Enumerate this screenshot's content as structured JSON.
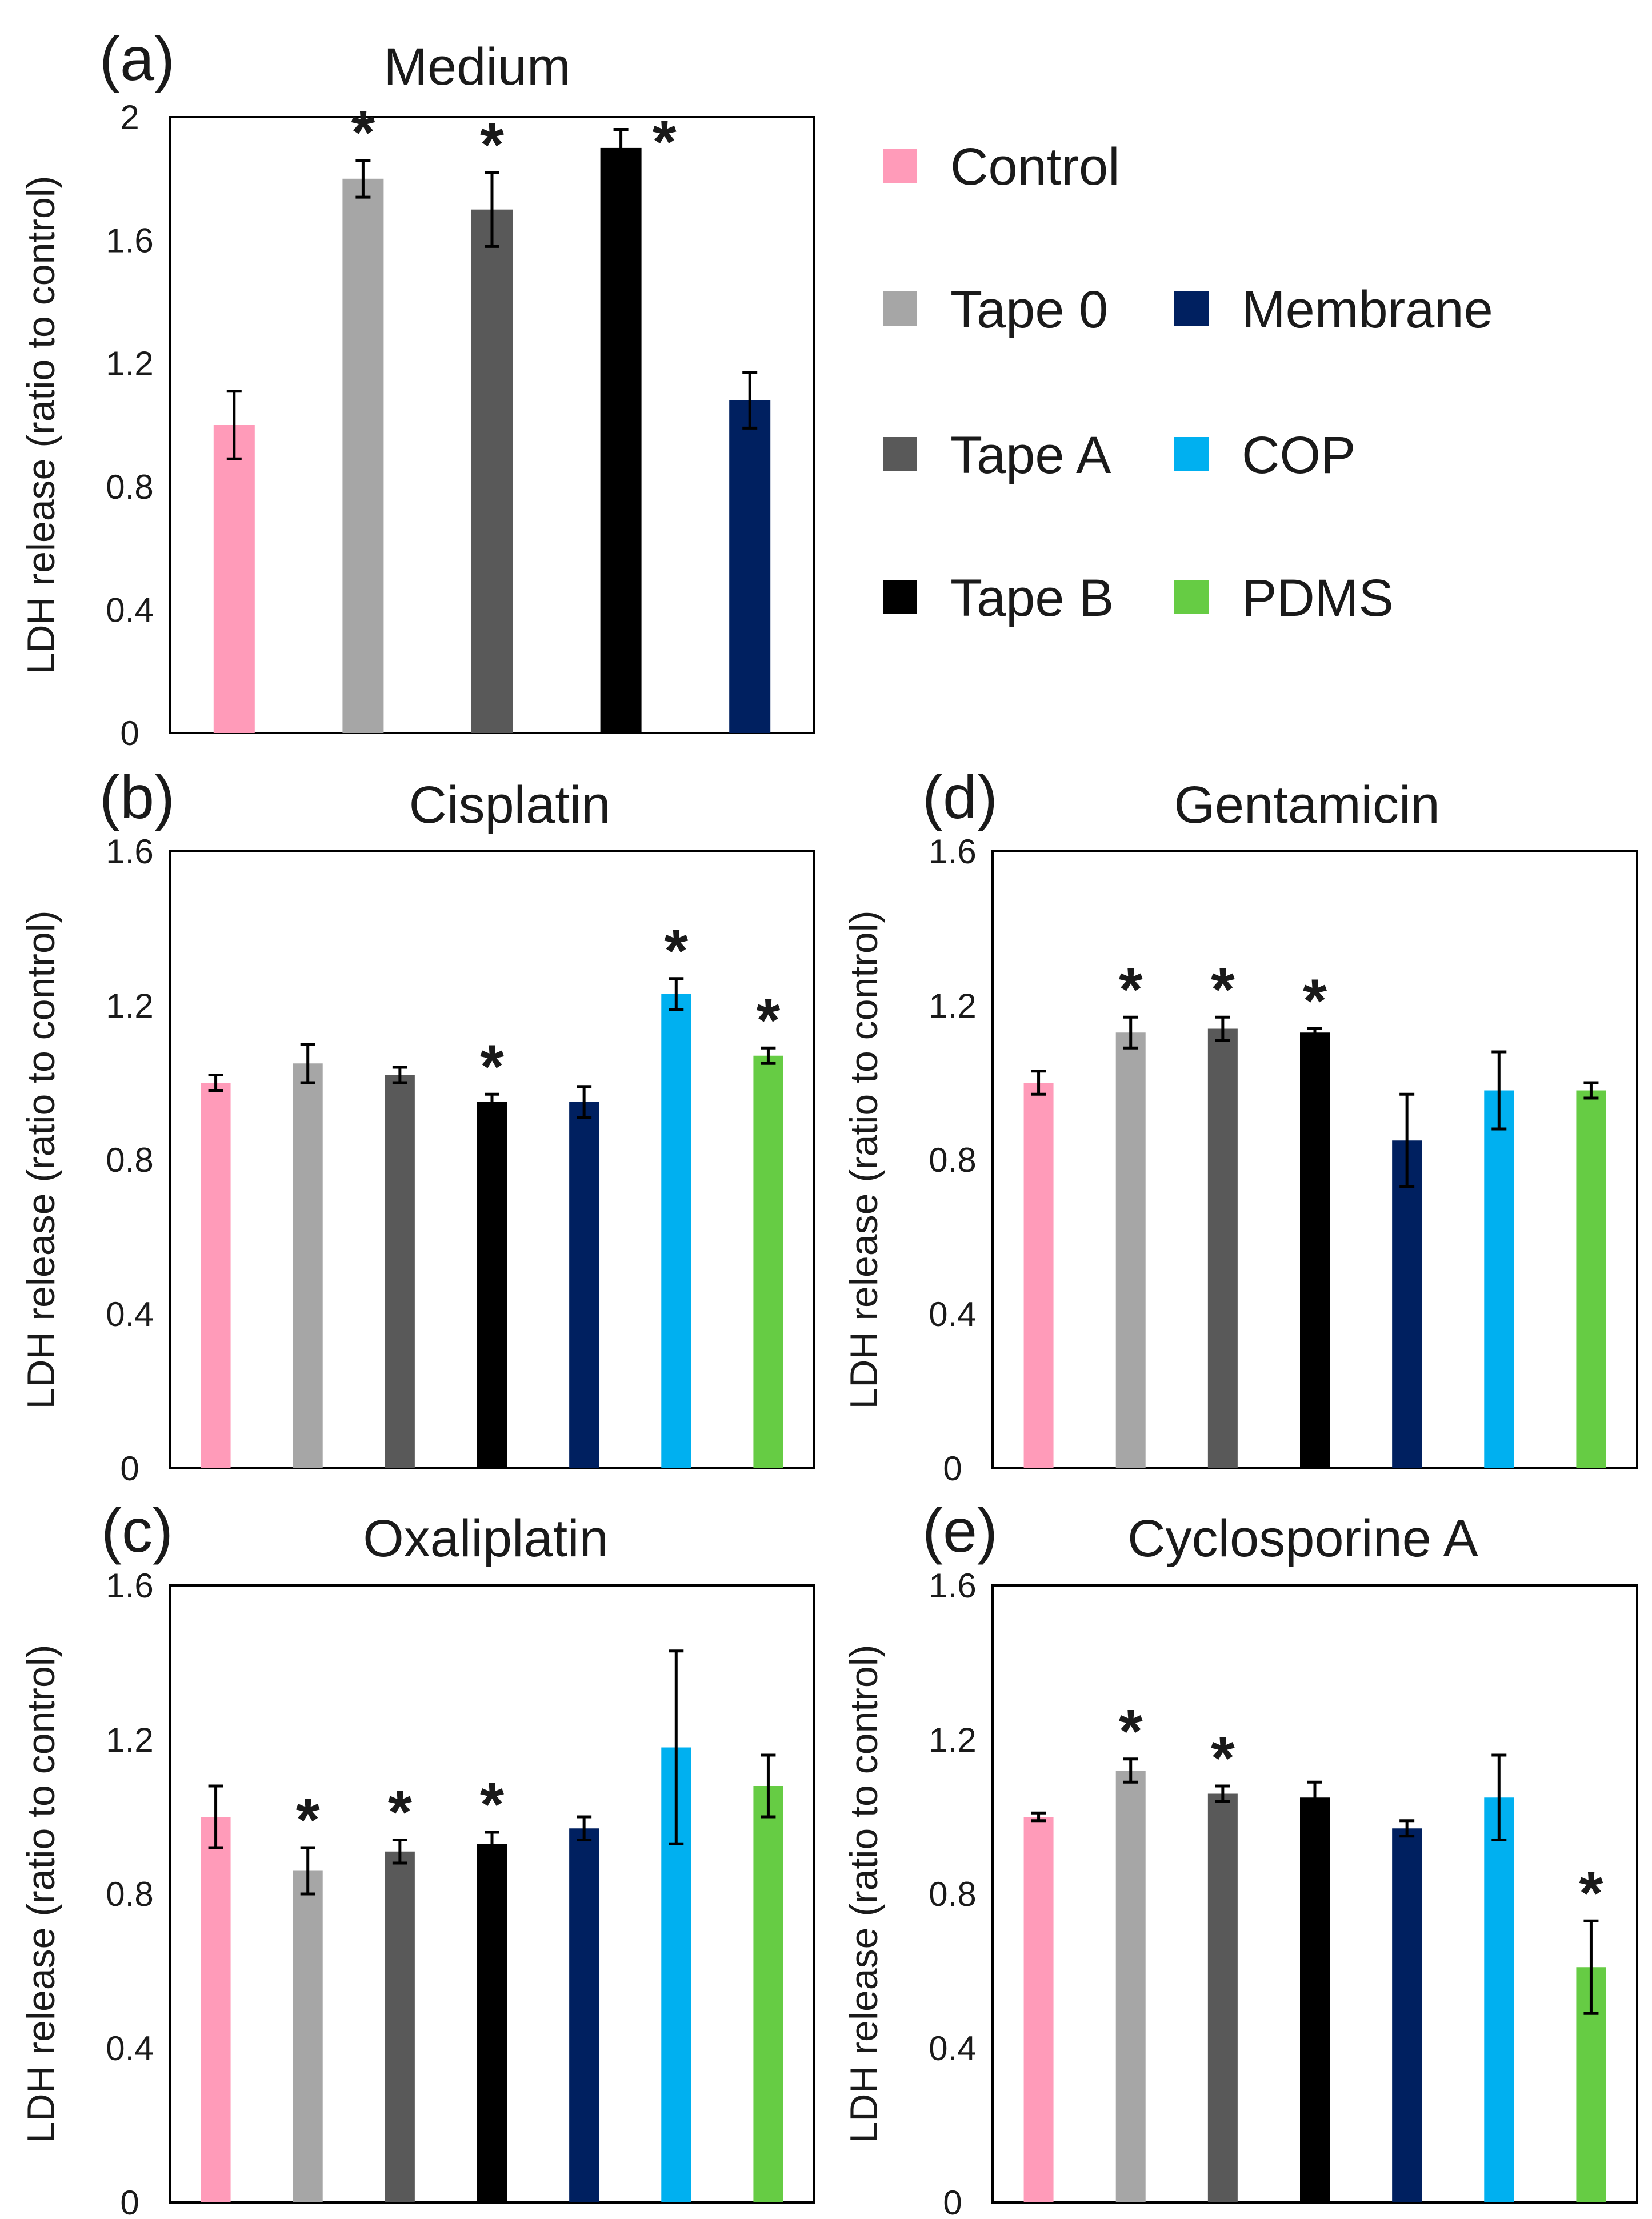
{
  "legend": [
    {
      "name": "Control",
      "color": "#ff9bb9"
    },
    {
      "name": "Tape 0",
      "color": "#a6a6a6"
    },
    {
      "name": "Membrane",
      "color": "#002060"
    },
    {
      "name": "Tape A",
      "color": "#595959"
    },
    {
      "name": "COP",
      "color": "#00b0f0"
    },
    {
      "name": "Tape B",
      "color": "#000000"
    },
    {
      "name": "PDMS",
      "color": "#66cc44"
    }
  ],
  "chart_data": [
    {
      "type": "bar",
      "panel": "(a)",
      "title": "Medium",
      "ylabel": "LDH release (ratio to control)",
      "ylim": [
        0,
        2
      ],
      "yticks": [
        "0",
        "0.4",
        "0.8",
        "1.2",
        "1.6",
        "2"
      ],
      "categories": [
        "Control",
        "Tape 0",
        "Tape A",
        "Tape B",
        "Membrane"
      ],
      "values": [
        1.0,
        1.8,
        1.7,
        1.9,
        1.08
      ],
      "errors": [
        0.11,
        0.06,
        0.12,
        0.06,
        0.09
      ],
      "significant": [
        false,
        true,
        true,
        true,
        false
      ],
      "star": "*"
    },
    {
      "type": "bar",
      "panel": "(b)",
      "title": "Cisplatin",
      "ylabel": "LDH release (ratio to control)",
      "ylim": [
        0,
        1.6
      ],
      "yticks": [
        "0",
        "0.4",
        "0.8",
        "1.2",
        "1.6"
      ],
      "categories": [
        "Control",
        "Tape 0",
        "Tape A",
        "Tape B",
        "Membrane",
        "COP",
        "PDMS"
      ],
      "values": [
        1.0,
        1.05,
        1.02,
        0.95,
        0.95,
        1.23,
        1.07
      ],
      "errors": [
        0.02,
        0.05,
        0.02,
        0.02,
        0.04,
        0.04,
        0.02
      ],
      "significant": [
        false,
        false,
        false,
        true,
        false,
        true,
        true
      ],
      "star": "*"
    },
    {
      "type": "bar",
      "panel": "(c)",
      "title": "Oxaliplatin",
      "ylabel": "LDH release (ratio to control)",
      "ylim": [
        0,
        1.6
      ],
      "yticks": [
        "0",
        "0.4",
        "0.8",
        "1.2",
        "1.6"
      ],
      "categories": [
        "Control",
        "Tape 0",
        "Tape A",
        "Tape B",
        "Membrane",
        "COP",
        "PDMS"
      ],
      "values": [
        1.0,
        0.86,
        0.91,
        0.93,
        0.97,
        1.18,
        1.08
      ],
      "errors": [
        0.08,
        0.06,
        0.03,
        0.03,
        0.03,
        0.25,
        0.08
      ],
      "significant": [
        false,
        true,
        true,
        true,
        false,
        false,
        false
      ],
      "star": "*"
    },
    {
      "type": "bar",
      "panel": "(d)",
      "title": "Gentamicin",
      "ylabel": "LDH release (ratio to control)",
      "ylim": [
        0,
        1.6
      ],
      "yticks": [
        "0",
        "0.4",
        "0.8",
        "1.2",
        "1.6"
      ],
      "categories": [
        "Control",
        "Tape 0",
        "Tape A",
        "Tape B",
        "Membrane",
        "COP",
        "PDMS"
      ],
      "values": [
        1.0,
        1.13,
        1.14,
        1.13,
        0.85,
        0.98,
        0.98
      ],
      "errors": [
        0.03,
        0.04,
        0.03,
        0.01,
        0.12,
        0.1,
        0.02
      ],
      "significant": [
        false,
        true,
        true,
        true,
        false,
        false,
        false
      ],
      "star": "*"
    },
    {
      "type": "bar",
      "panel": "(e)",
      "title": "Cyclosporine A",
      "ylabel": "LDH release (ratio to control)",
      "ylim": [
        0,
        1.6
      ],
      "yticks": [
        "0",
        "0.4",
        "0.8",
        "1.2",
        "1.6"
      ],
      "categories": [
        "Control",
        "Tape 0",
        "Tape A",
        "Tape B",
        "Membrane",
        "COP",
        "PDMS"
      ],
      "values": [
        1.0,
        1.12,
        1.06,
        1.05,
        0.97,
        1.05,
        0.61
      ],
      "errors": [
        0.01,
        0.03,
        0.02,
        0.04,
        0.02,
        0.11,
        0.12
      ],
      "significant": [
        false,
        true,
        true,
        false,
        false,
        false,
        true
      ],
      "star": "*"
    }
  ]
}
